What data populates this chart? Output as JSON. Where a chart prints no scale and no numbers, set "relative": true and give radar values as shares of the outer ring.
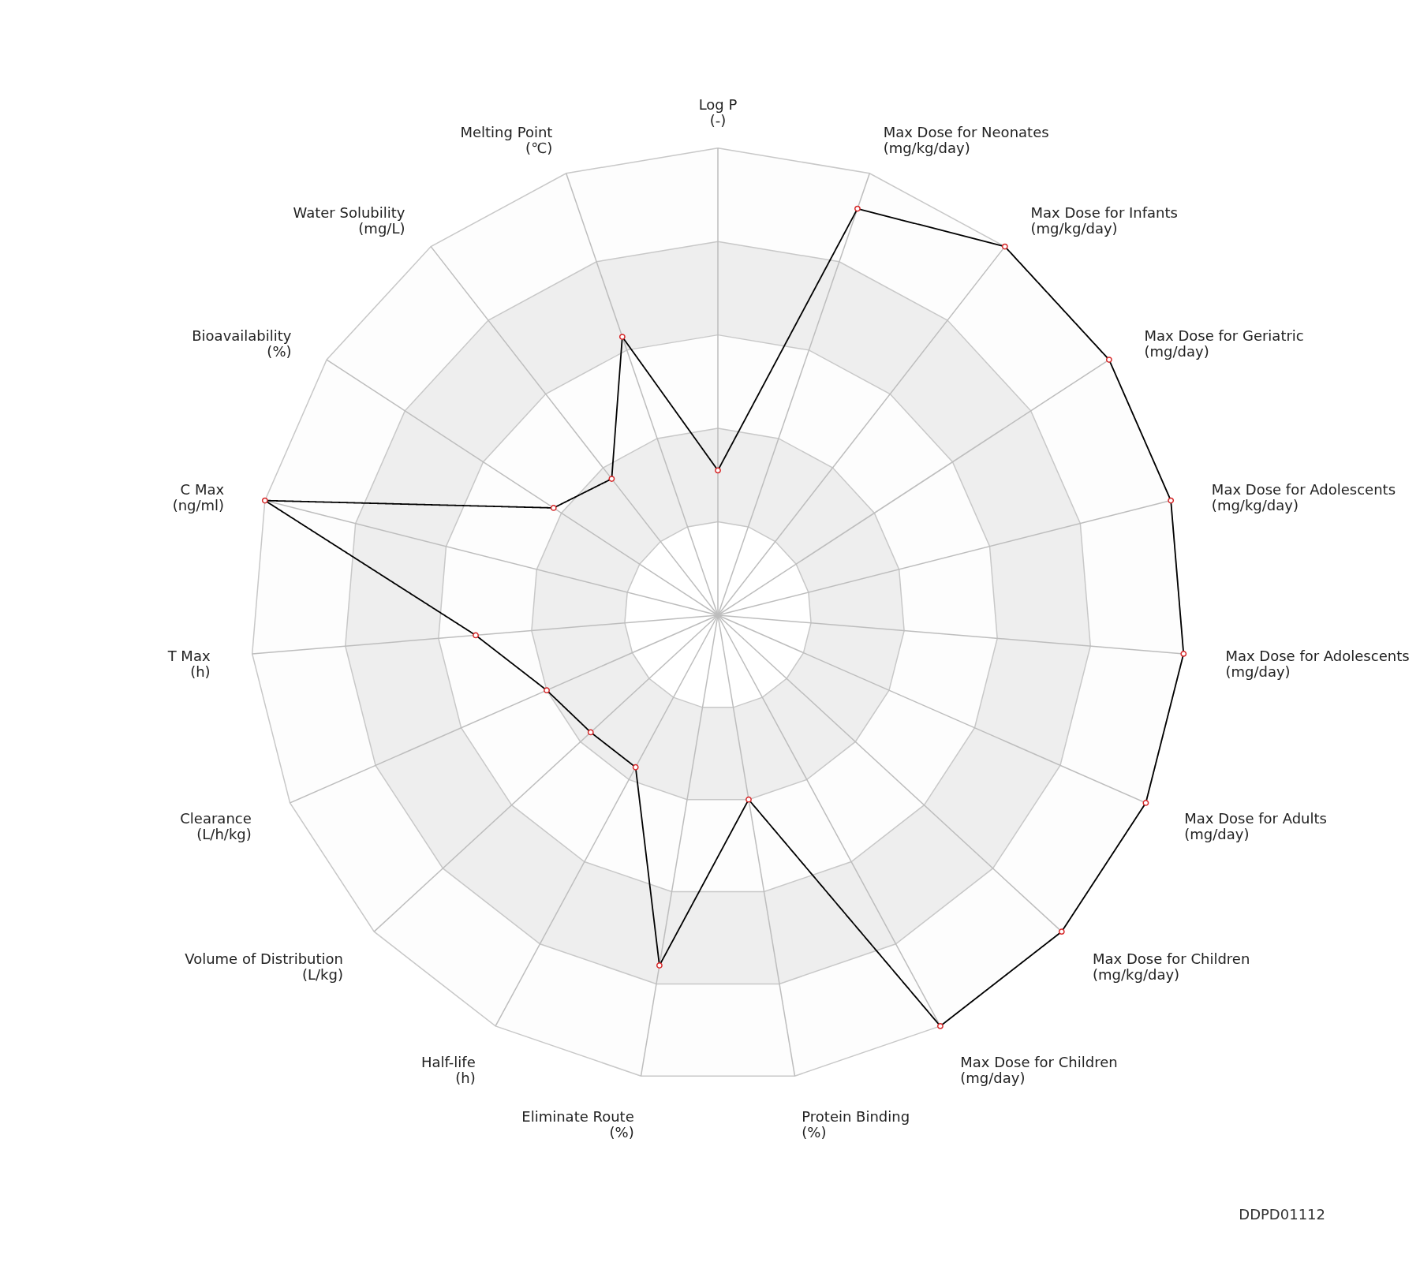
{
  "chart_data": {
    "type": "radar",
    "relative": true,
    "marker": "circle",
    "line_style": "solid",
    "grid": true,
    "categories": [
      "Log P\n(-)",
      "Max Dose for Neonates\n(mg/kg/day)",
      "Max Dose for Infants\n(mg/kg/day)",
      "Max Dose for Geriatric\n(mg/day)",
      "Max Dose for Adolescents\n(mg/kg/day)",
      "Max Dose for Adolescents\n(mg/day)",
      "Max Dose for Adults\n(mg/day)",
      "Max Dose for Children\n(mg/kg/day)",
      "Max Dose for Children\n(mg/day)",
      "Protein Binding\n(%)",
      "Eliminate Route\n(%)",
      "Half-life\n(h)",
      "Volume of Distribution\n(L/kg)",
      "Clearance\n(L/h/kg)",
      "T Max\n(h)",
      "C Max\n(ng/ml)",
      "Bioavailability\n(%)",
      "Water Solubility\n(mg/L)",
      "Melting Point\n(℃)"
    ],
    "series": [
      {
        "color": "#000000",
        "values": [
          0.31,
          0.92,
          1,
          1,
          1,
          1,
          1,
          1,
          1,
          0.4,
          0.76,
          0.37,
          0.37,
          0.4,
          0.52,
          1,
          0.42,
          0.37,
          0.63
        ]
      }
    ],
    "annotations": [
      "DDPD01112"
    ]
  }
}
